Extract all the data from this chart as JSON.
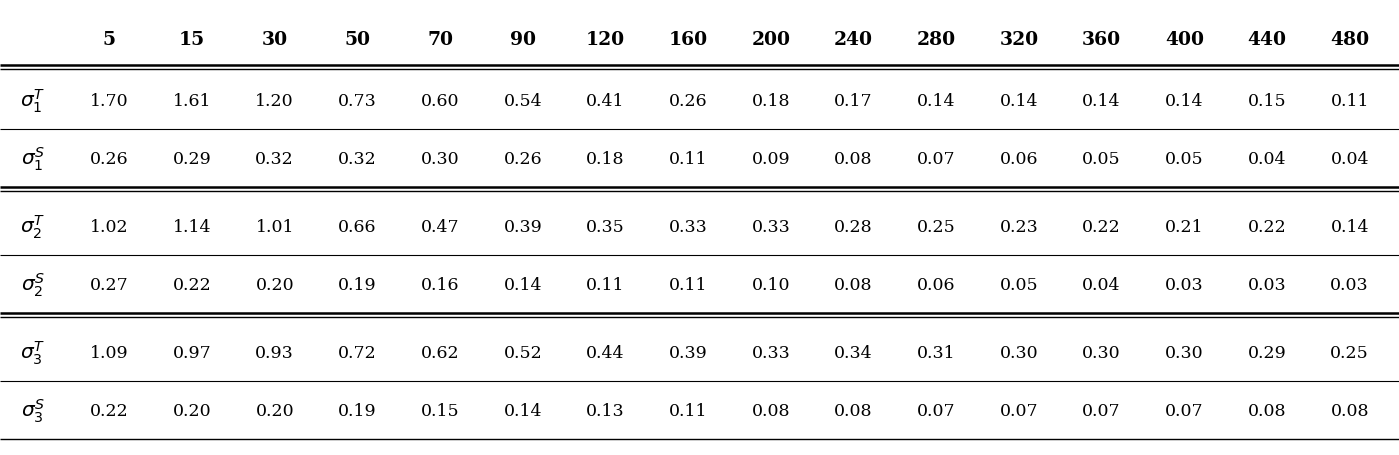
{
  "columns": [
    "5",
    "15",
    "30",
    "50",
    "70",
    "90",
    "120",
    "160",
    "200",
    "240",
    "280",
    "320",
    "360",
    "400",
    "440",
    "480"
  ],
  "rows": [
    {
      "label_sub": "1",
      "label_sup": "T",
      "values": [
        "1.70",
        "1.61",
        "1.20",
        "0.73",
        "0.60",
        "0.54",
        "0.41",
        "0.26",
        "0.18",
        "0.17",
        "0.14",
        "0.14",
        "0.14",
        "0.14",
        "0.15",
        "0.11"
      ]
    },
    {
      "label_sub": "1",
      "label_sup": "S",
      "values": [
        "0.26",
        "0.29",
        "0.32",
        "0.32",
        "0.30",
        "0.26",
        "0.18",
        "0.11",
        "0.09",
        "0.08",
        "0.07",
        "0.06",
        "0.05",
        "0.05",
        "0.04",
        "0.04"
      ]
    },
    {
      "label_sub": "2",
      "label_sup": "T",
      "values": [
        "1.02",
        "1.14",
        "1.01",
        "0.66",
        "0.47",
        "0.39",
        "0.35",
        "0.33",
        "0.33",
        "0.28",
        "0.25",
        "0.23",
        "0.22",
        "0.21",
        "0.22",
        "0.14"
      ]
    },
    {
      "label_sub": "2",
      "label_sup": "S",
      "values": [
        "0.27",
        "0.22",
        "0.20",
        "0.19",
        "0.16",
        "0.14",
        "0.11",
        "0.11",
        "0.10",
        "0.08",
        "0.06",
        "0.05",
        "0.04",
        "0.03",
        "0.03",
        "0.03"
      ]
    },
    {
      "label_sub": "3",
      "label_sup": "T",
      "values": [
        "1.09",
        "0.97",
        "0.93",
        "0.72",
        "0.62",
        "0.52",
        "0.44",
        "0.39",
        "0.33",
        "0.34",
        "0.31",
        "0.30",
        "0.30",
        "0.30",
        "0.29",
        "0.25"
      ]
    },
    {
      "label_sub": "3",
      "label_sup": "S",
      "values": [
        "0.22",
        "0.20",
        "0.20",
        "0.19",
        "0.15",
        "0.14",
        "0.13",
        "0.11",
        "0.08",
        "0.08",
        "0.07",
        "0.07",
        "0.07",
        "0.07",
        "0.08",
        "0.08"
      ]
    }
  ],
  "bg_color": "#ffffff",
  "text_color": "#000000",
  "header_fontsize": 13.5,
  "cell_fontsize": 12.5,
  "label_fontsize": 14.5,
  "fig_width": 13.99,
  "fig_height": 4.56,
  "dpi": 100
}
